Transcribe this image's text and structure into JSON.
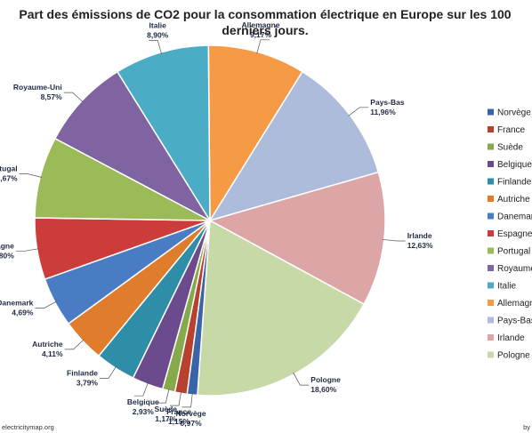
{
  "chart_data": {
    "type": "pie",
    "title_line1": "Part des émissions de CO2 pour la consommation électrique en Europe sur les 100",
    "title_line2": "derniers jours.",
    "slices": [
      {
        "name": "Allemagne",
        "value": 9.17,
        "label": "9,17%",
        "color": "#f59a45"
      },
      {
        "name": "Pays-Bas",
        "value": 11.96,
        "label": "11,96%",
        "color": "#aebcdc"
      },
      {
        "name": "Irlande",
        "value": 12.63,
        "label": "12,63%",
        "color": "#dda6a6"
      },
      {
        "name": "Pologne",
        "value": 18.6,
        "label": "18,60%",
        "color": "#c7d9a6"
      },
      {
        "name": "Norvège",
        "value": 0.97,
        "label": "0,97%",
        "color": "#3a64a8"
      },
      {
        "name": "France",
        "value": 1.15,
        "label": "1,15%",
        "color": "#b8402f"
      },
      {
        "name": "Suède",
        "value": 1.17,
        "label": "1,17%",
        "color": "#86a94c"
      },
      {
        "name": "Belgique",
        "value": 2.93,
        "label": "2,93%",
        "color": "#6b4a8e"
      },
      {
        "name": "Finlande",
        "value": 3.79,
        "label": "3,79%",
        "color": "#2e8ea8"
      },
      {
        "name": "Autriche",
        "value": 4.11,
        "label": "4,11%",
        "color": "#e07d2c"
      },
      {
        "name": "Danemark",
        "value": 4.69,
        "label": "4,69%",
        "color": "#4a7cc4"
      },
      {
        "name": "Espagne",
        "value": 5.8,
        "label": "5,80%",
        "color": "#cc3c3a"
      },
      {
        "name": "Portugal",
        "value": 7.67,
        "label": "7,67%",
        "color": "#9bbb59"
      },
      {
        "name": "Royaume-Uni",
        "value": 8.57,
        "label": "8,57%",
        "color": "#8064a2"
      },
      {
        "name": "Italie",
        "value": 8.9,
        "label": "8,90%",
        "color": "#4bacc6"
      }
    ],
    "legend": {
      "placement": "right",
      "entries": [
        {
          "name": "Norvège",
          "color": "#3a64a8"
        },
        {
          "name": "France",
          "color": "#b8402f"
        },
        {
          "name": "Suède",
          "color": "#86a94c"
        },
        {
          "name": "Belgique",
          "color": "#6b4a8e"
        },
        {
          "name": "Finlande",
          "color": "#2e8ea8"
        },
        {
          "name": "Autriche",
          "color": "#e07d2c"
        },
        {
          "name": "Danemark",
          "color": "#4a7cc4"
        },
        {
          "name": "Espagne",
          "color": "#cc3c3a"
        },
        {
          "name": "Portugal",
          "color": "#9bbb59"
        },
        {
          "name": "Royaume-Uni",
          "color": "#8064a2"
        },
        {
          "name": "Italie",
          "color": "#4bacc6"
        },
        {
          "name": "Allemagne",
          "color": "#f59a45"
        },
        {
          "name": "Pays-Bas",
          "color": "#aebcdc"
        },
        {
          "name": "Irlande",
          "color": "#dda6a6"
        },
        {
          "name": "Pologne",
          "color": "#c7d9a6"
        }
      ]
    }
  },
  "footer": {
    "source": "electricitymap.org",
    "credit": "by"
  }
}
